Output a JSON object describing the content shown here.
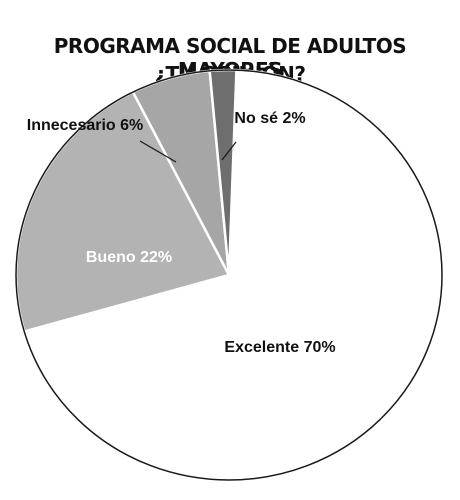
{
  "title": {
    "line1": "PROGRAMA SOCIAL DE ADULTOS MAYORES",
    "line2": "¿TU OPINIÓN?"
  },
  "chart_data": {
    "type": "pie",
    "slices": [
      {
        "label": "Excelente",
        "value": 70,
        "text": "Excelente 70%",
        "color": "#ffffff",
        "label_color": "#111111"
      },
      {
        "label": "Bueno",
        "value": 22,
        "text": "Bueno 22%",
        "color": "#b3b3b3",
        "label_color": "#ffffff"
      },
      {
        "label": "Innecesario",
        "value": 6,
        "text": "Innecesario 6%",
        "color": "#a6a6a6",
        "label_color": "#111111"
      },
      {
        "label": "No sé",
        "value": 2,
        "text": "No sé 2%",
        "color": "#6e6e6e",
        "label_color": "#111111"
      }
    ]
  }
}
